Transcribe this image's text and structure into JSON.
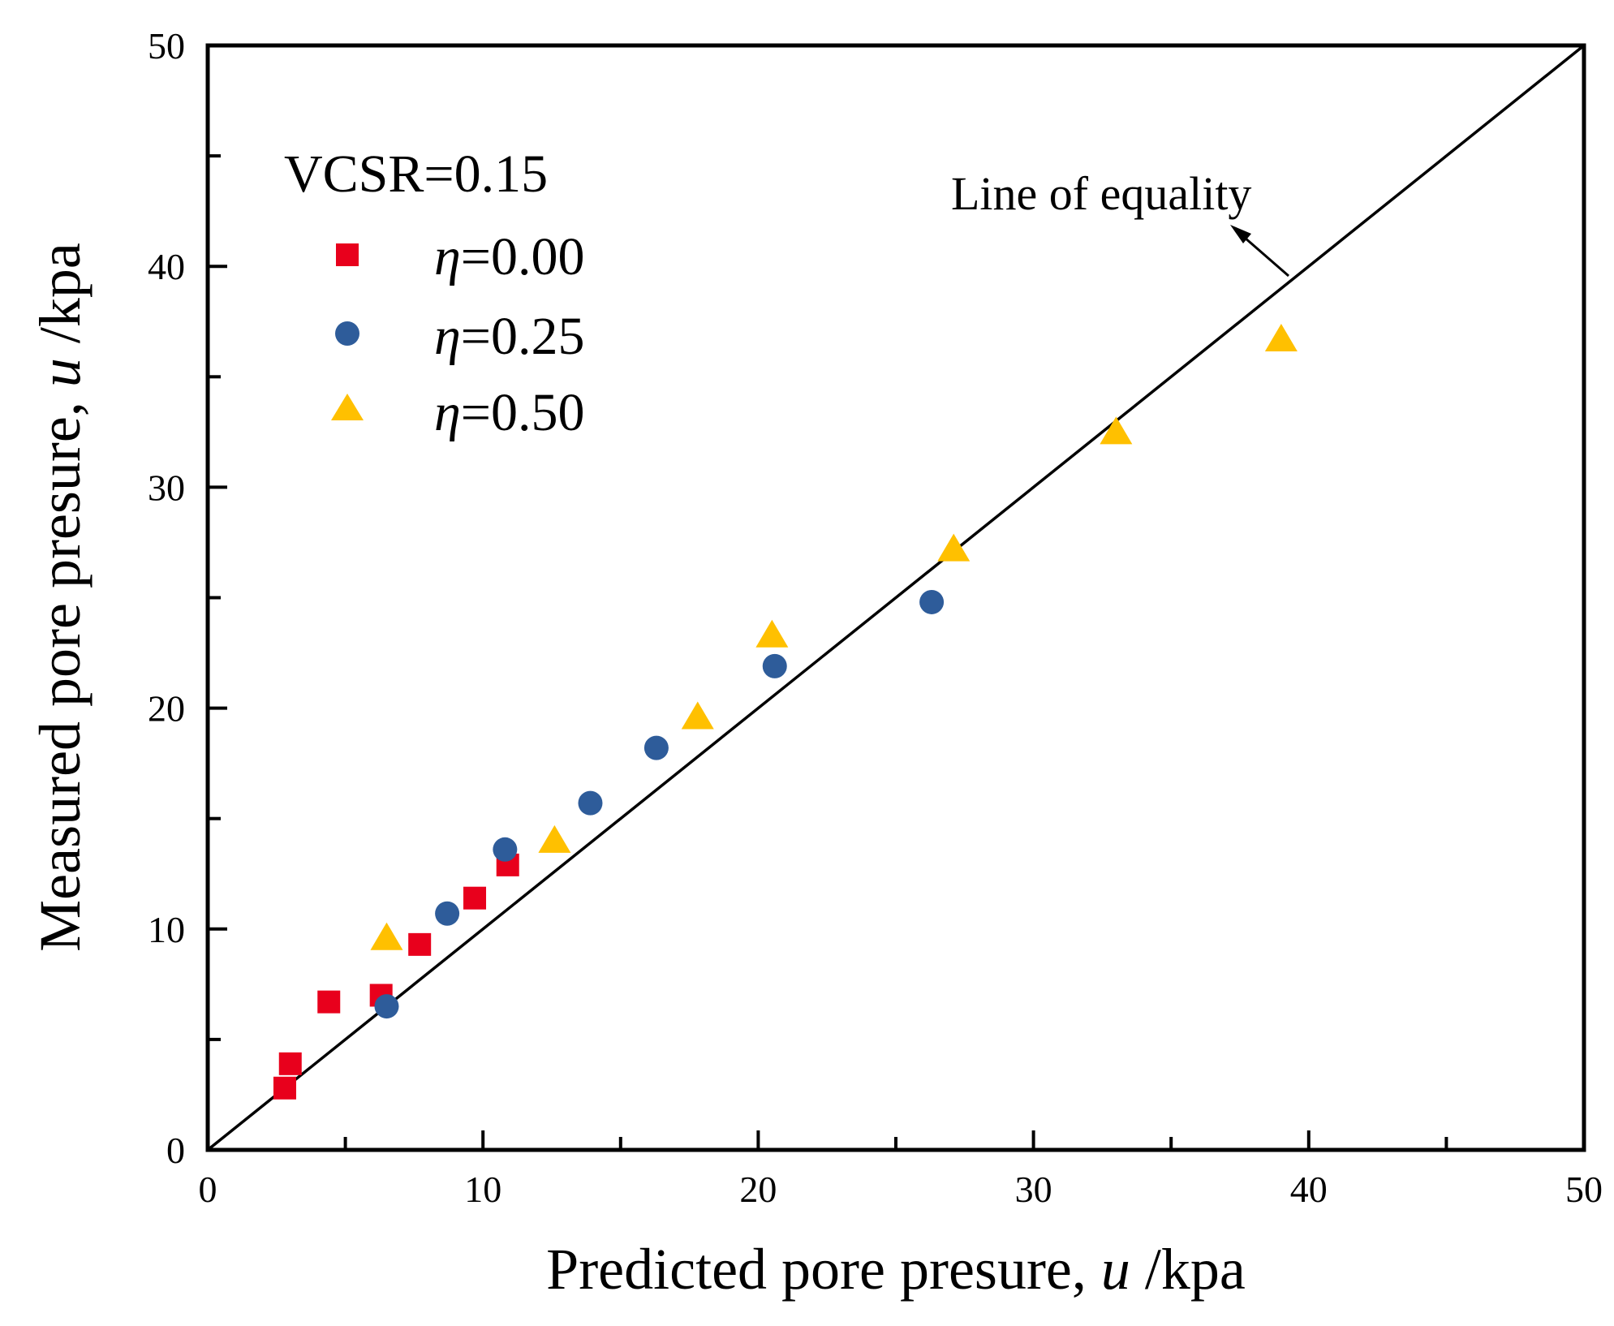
{
  "chart_data": {
    "type": "scatter",
    "title": "",
    "xlabel": {
      "prefix": "Predicted pore presure, ",
      "var": "u",
      "suffix": " /kpa"
    },
    "ylabel": {
      "prefix": "Measured pore presure, ",
      "var": "u",
      "suffix": " /kpa"
    },
    "xlim": [
      0,
      50
    ],
    "ylim": [
      0,
      50
    ],
    "xticks": [
      0,
      10,
      20,
      30,
      40,
      50
    ],
    "yticks": [
      0,
      10,
      20,
      30,
      40,
      50
    ],
    "minor_step": 5,
    "grid": false,
    "legend": {
      "title": "VCSR=0.15",
      "placement": "top-left",
      "symbol": "η"
    },
    "series": [
      {
        "name": "η=0.00",
        "value_label": "=0.00",
        "marker": "square",
        "color": "#E8001C",
        "points": [
          [
            2.8,
            2.8
          ],
          [
            3.0,
            3.9
          ],
          [
            4.4,
            6.7
          ],
          [
            6.3,
            7.0
          ],
          [
            7.7,
            9.3
          ],
          [
            9.7,
            11.4
          ],
          [
            10.9,
            12.9
          ]
        ]
      },
      {
        "name": "η=0.25",
        "value_label": "=0.25",
        "marker": "circle",
        "color": "#2E5C9A",
        "points": [
          [
            6.5,
            6.5
          ],
          [
            8.7,
            10.7
          ],
          [
            10.8,
            13.6
          ],
          [
            13.9,
            15.7
          ],
          [
            16.3,
            18.2
          ],
          [
            20.6,
            21.9
          ],
          [
            26.3,
            24.8
          ]
        ]
      },
      {
        "name": "η=0.50",
        "value_label": "=0.50",
        "marker": "triangle",
        "color": "#FFC000",
        "points": [
          [
            6.5,
            9.6
          ],
          [
            12.6,
            14.0
          ],
          [
            17.8,
            19.6
          ],
          [
            20.5,
            23.3
          ],
          [
            27.1,
            27.2
          ],
          [
            33.0,
            32.5
          ],
          [
            39.0,
            36.7
          ]
        ]
      }
    ],
    "reference_line": {
      "name": "Line of equality",
      "from": [
        0,
        0
      ],
      "to": [
        50,
        50
      ]
    },
    "annotations": [
      {
        "text": "Line of equality",
        "points_to": [
          39.2,
          39.2
        ]
      }
    ]
  }
}
